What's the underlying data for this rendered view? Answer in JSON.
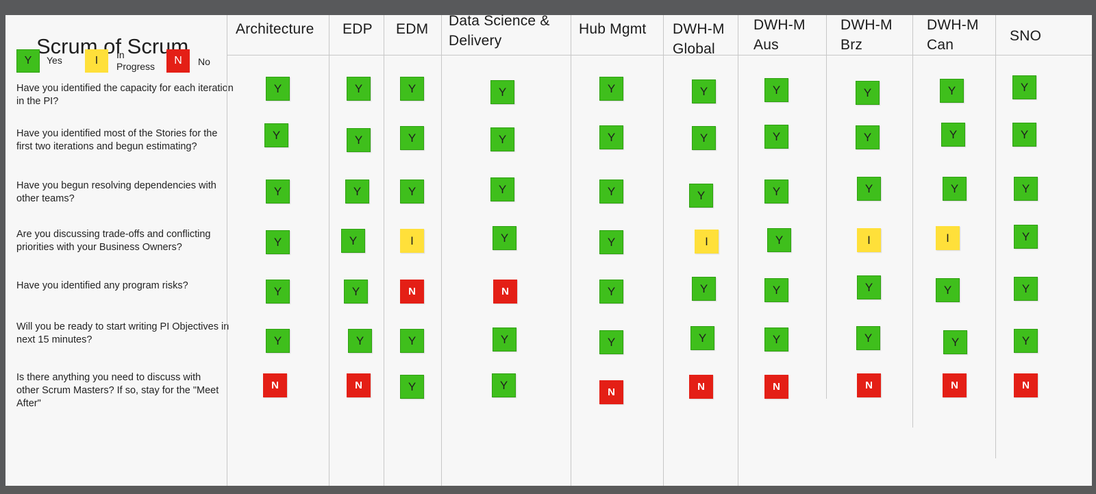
{
  "title": "Scrum of Scrum",
  "legend": [
    {
      "code": "Y",
      "label": "Yes",
      "color": "#3fbf1c"
    },
    {
      "code": "I",
      "label": "In Progress",
      "color": "#ffe03a"
    },
    {
      "code": "N",
      "label": "No",
      "color": "#e41f16"
    }
  ],
  "columns": [
    "Architecture",
    "EDP",
    "EDM",
    "Data Science & Delivery",
    "Hub Mgmt",
    "DWH-M Global",
    "DWH-M Aus",
    "DWH-M Brz",
    "DWH-M Can",
    "SNO"
  ],
  "questions": [
    "Have you identified the capacity for each iteration in the PI?",
    "Have you identified most of the Stories for the first two iterations and begun estimating?",
    "Have you begun resolving dependencies with other teams?",
    "Are you discussing trade-offs and conflicting priorities with your Business Owners?",
    "Have you identified any program risks?",
    "Will you be ready to start writing PI Objectives in next 15 minutes?",
    "Is there anything you need to discuss with other Scrum Masters? If so, stay for the \"Meet After\""
  ],
  "status_matrix": [
    [
      "Y",
      "Y",
      "Y",
      "Y",
      "Y",
      "Y",
      "Y",
      "Y",
      "Y",
      "Y"
    ],
    [
      "Y",
      "Y",
      "Y",
      "Y",
      "Y",
      "Y",
      "Y",
      "Y",
      "Y",
      "Y"
    ],
    [
      "Y",
      "Y",
      "Y",
      "Y",
      "Y",
      "Y",
      "Y",
      "Y",
      "Y",
      "Y"
    ],
    [
      "Y",
      "Y",
      "I",
      "Y",
      "Y",
      "I",
      "Y",
      "I",
      "I",
      "Y"
    ],
    [
      "Y",
      "Y",
      "N",
      "N",
      "Y",
      "Y",
      "Y",
      "Y",
      "Y",
      "Y"
    ],
    [
      "Y",
      "Y",
      "Y",
      "Y",
      "Y",
      "Y",
      "Y",
      "Y",
      "Y",
      "Y"
    ],
    [
      "N",
      "N",
      "Y",
      "Y",
      "N",
      "N",
      "N",
      "N",
      "N",
      "N"
    ]
  ]
}
